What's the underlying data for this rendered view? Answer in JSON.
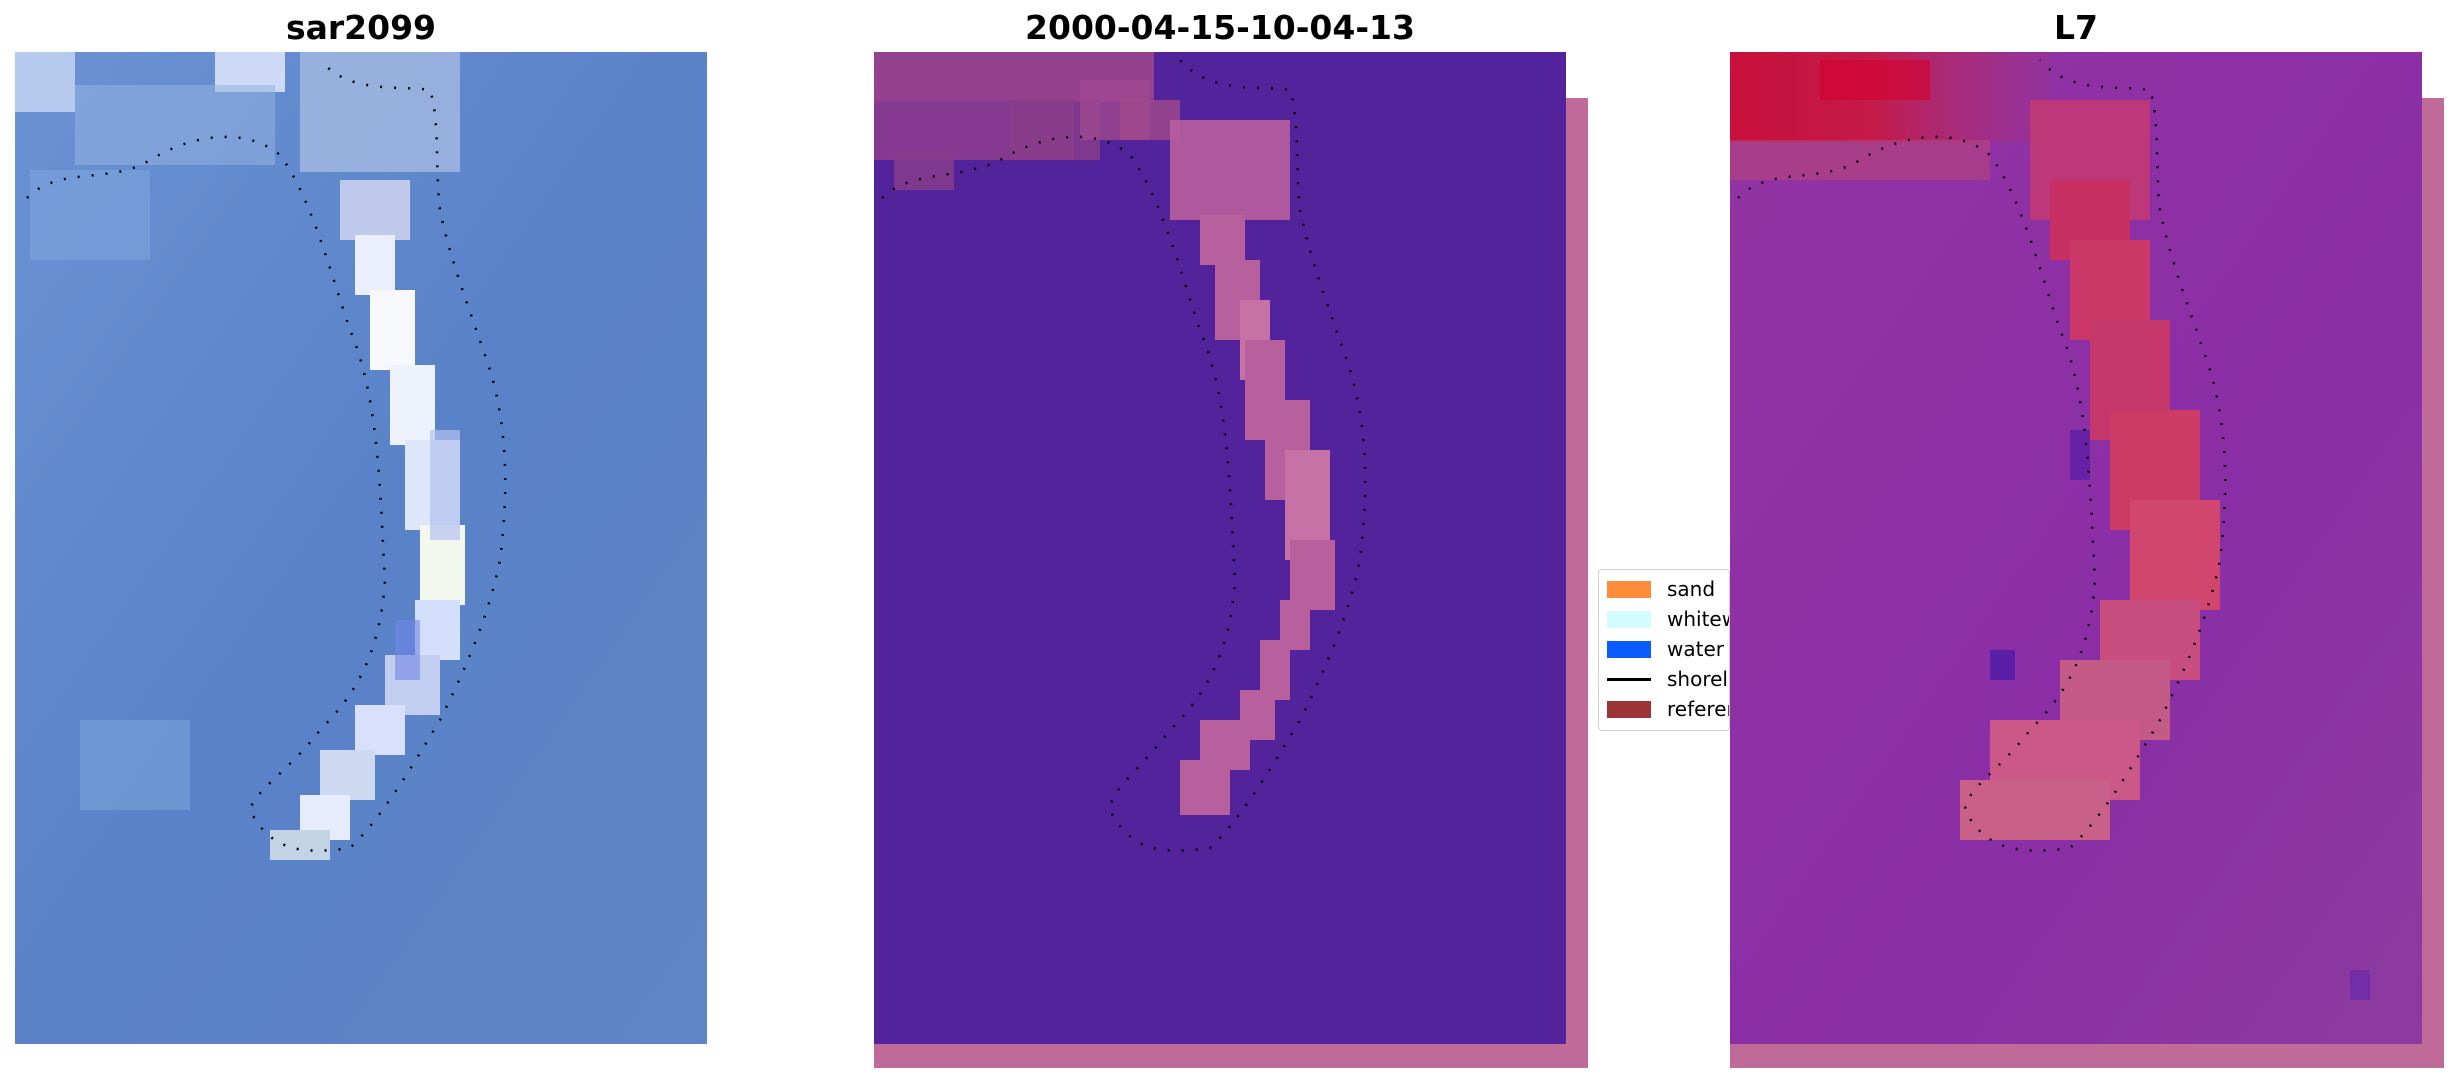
{
  "panels": [
    {
      "title": "sar2099"
    },
    {
      "title": "2000-04-15-10-04-13"
    },
    {
      "title": "L7"
    }
  ],
  "legend": {
    "items": [
      {
        "label": "sand",
        "color": "#ff8c3a",
        "kind": "patch"
      },
      {
        "label": "whitewater",
        "color": "#d4fbff",
        "kind": "patch"
      },
      {
        "label": "water",
        "color": "#0a5cff",
        "kind": "patch"
      },
      {
        "label": "shoreline",
        "color": "#000000",
        "kind": "line"
      },
      {
        "label": "reference",
        "color": "#9b3535",
        "kind": "patch"
      }
    ]
  },
  "colors": {
    "rgb_water": "#5b82c8",
    "class_background": "#52239a",
    "class_sand_band": "#c06a9a",
    "ndwi_background": "#8a2ea6",
    "ndwi_sand": "#d13a6a",
    "ndwi_top": "#c8103c"
  }
}
